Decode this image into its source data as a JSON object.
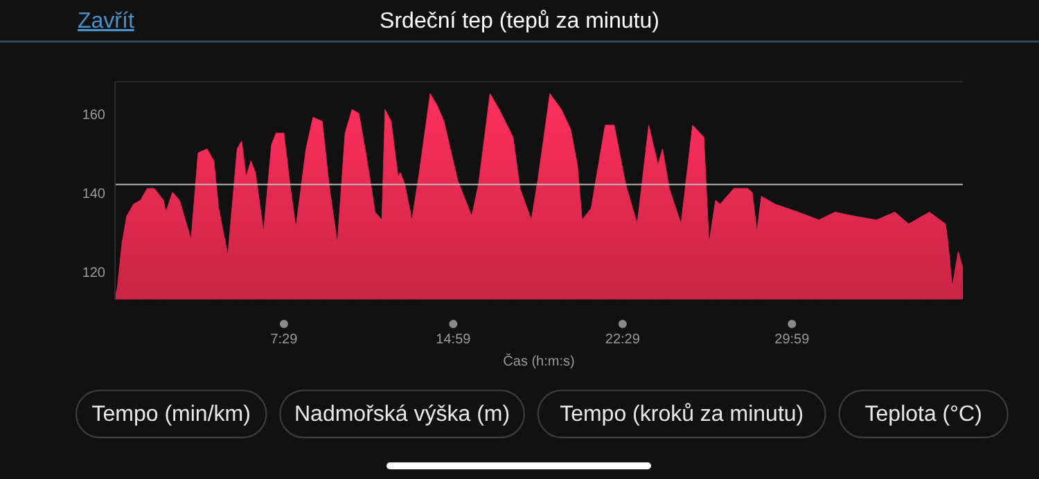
{
  "chart_data": {
    "type": "area",
    "title": "Srdeční tep (tepů za minutu)",
    "xlabel": "Čas (h:m:s)",
    "x": [
      0,
      0.11,
      0.31,
      0.52,
      0.82,
      1.13,
      1.43,
      1.74,
      2.15,
      2.25,
      2.55,
      2.86,
      3.37,
      3.68,
      4.08,
      4.38,
      4.59,
      5.0,
      5.41,
      5.61,
      5.81,
      6.02,
      6.22,
      6.58,
      6.93,
      7.13,
      7.48,
      7.75,
      8.01,
      8.46,
      8.77,
      9.18,
      9.48,
      9.85,
      10.19,
      10.5,
      10.8,
      11.11,
      11.52,
      11.82,
      11.96,
      12.23,
      12.54,
      12.64,
      12.84,
      13.15,
      13.45,
      13.96,
      14.27,
      14.57,
      15.18,
      15.8,
      16.1,
      16.61,
      17.02,
      17.63,
      17.94,
      18.44,
      18.75,
      19.26,
      19.77,
      20.18,
      20.48,
      20.69,
      21.09,
      21.71,
      22.11,
      22.62,
      23.13,
      23.64,
      24.05,
      24.25,
      24.55,
      25.07,
      25.58,
      26.08,
      26.31,
      26.6,
      26.8,
      27.41,
      28.02,
      28.22,
      28.43,
      28.63,
      29.24,
      30.26,
      31.18,
      31.89,
      32.71,
      33.72,
      34.54,
      35.15,
      36.07,
      36.78,
      36.88,
      37.08,
      37.35,
      37.54
    ],
    "series": [
      {
        "color": "#e0284e",
        "values": [
          113,
          116,
          127,
          134,
          137,
          138,
          141,
          141,
          138,
          135,
          140,
          138,
          128,
          150,
          151,
          148,
          136,
          124,
          151,
          153,
          144,
          148,
          145,
          130,
          152,
          155,
          155,
          142,
          131,
          151,
          159,
          158,
          142,
          127,
          155,
          161,
          160,
          150,
          135,
          133,
          161,
          158,
          144,
          145,
          142,
          133,
          144,
          165,
          162,
          158,
          143,
          134,
          142,
          165,
          161,
          154,
          141,
          133,
          144,
          165,
          161,
          156,
          147,
          133,
          136,
          157,
          157,
          142,
          132,
          157,
          147,
          151,
          141,
          132,
          157,
          154,
          127,
          138,
          137,
          141,
          141,
          140,
          130,
          139,
          137,
          135,
          133,
          135,
          134,
          133,
          135,
          132,
          135,
          132,
          128,
          116,
          125,
          121
        ]
      }
    ],
    "xlim": [
      0,
      37.55
    ],
    "ylim": [
      113,
      168
    ],
    "yticks": [
      120,
      140,
      160
    ],
    "xticks": [
      {
        "value": 7.483,
        "label": "7:29"
      },
      {
        "value": 14.983,
        "label": "14:59"
      },
      {
        "value": 22.483,
        "label": "22:29"
      },
      {
        "value": 29.983,
        "label": "29:59"
      }
    ],
    "ref_lines": [
      {
        "axis": "y",
        "value": 142,
        "color": "#bbbbbb"
      }
    ],
    "grid": false,
    "annotations": [
      "Zavřít",
      "Tempo (min/km)",
      "Nadmořská výška (m)",
      "Tempo (kroků za minutu)",
      "Teplota (°C)"
    ]
  }
}
